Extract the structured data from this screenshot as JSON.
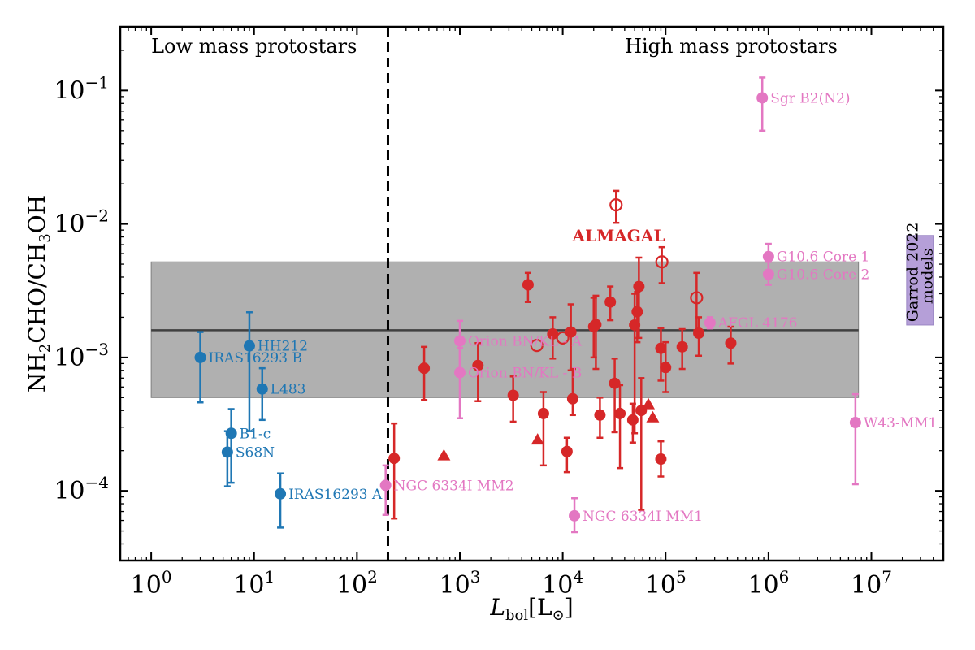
{
  "colors": {
    "low_mass": "#1f77b4",
    "almagal": "#d62728",
    "high_mass_lit": "#e377c2",
    "band": "#b0b0b0",
    "median_line": "#404040",
    "garrod": "#b59fd8"
  },
  "chart_data": {
    "type": "scatter",
    "xscale": "log",
    "yscale": "log",
    "xlim": [
      0.5,
      50000000
    ],
    "ylim": [
      3e-05,
      0.3
    ],
    "xlabel": "L_bol[L_⊙]",
    "ylabel": "NH2CHO/CH3OH",
    "x_ticks": [
      {
        "value": 1,
        "base": "10",
        "exp": "0"
      },
      {
        "value": 10,
        "base": "10",
        "exp": "1"
      },
      {
        "value": 100,
        "base": "10",
        "exp": "2"
      },
      {
        "value": 1000,
        "base": "10",
        "exp": "3"
      },
      {
        "value": 10000,
        "base": "10",
        "exp": "4"
      },
      {
        "value": 100000,
        "base": "10",
        "exp": "5"
      },
      {
        "value": 1000000,
        "base": "10",
        "exp": "6"
      },
      {
        "value": 10000000,
        "base": "10",
        "exp": "7"
      }
    ],
    "y_ticks": [
      {
        "value": 0.0001,
        "base": "10",
        "exp": "−4"
      },
      {
        "value": 0.001,
        "base": "10",
        "exp": "−3"
      },
      {
        "value": 0.01,
        "base": "10",
        "exp": "−2"
      },
      {
        "value": 0.1,
        "base": "10",
        "exp": "−1"
      }
    ],
    "region_divider_x": 200,
    "region_labels": {
      "low": "Low mass protostars",
      "high": "High mass protostars"
    },
    "band": {
      "x_range": [
        1,
        7500000
      ],
      "y_low": 0.0005,
      "y_high": 0.0052,
      "median": 0.0016
    },
    "almagal_label": "ALMAGAL",
    "garrod": {
      "x_range": [
        22000000,
        40000000
      ],
      "y_range": [
        0.00175,
        0.0082
      ],
      "label_line1": "Garrod 2022",
      "label_line2": "models"
    },
    "low_mass": [
      {
        "name": "IRAS16293 B",
        "x": 3,
        "y": 0.001,
        "ylo": 0.00046,
        "yhi": 0.00155
      },
      {
        "name": "HH212",
        "x": 9,
        "y": 0.00122,
        "ylo": 0.00028,
        "yhi": 0.00218
      },
      {
        "name": "L483",
        "x": 12,
        "y": 0.00058,
        "ylo": 0.00034,
        "yhi": 0.00083
      },
      {
        "name": "B1-c",
        "x": 6,
        "y": 0.00027,
        "ylo": 0.000115,
        "yhi": 0.00041
      },
      {
        "name": "S68N",
        "x": 5.5,
        "y": 0.000195,
        "ylo": 0.000108,
        "yhi": 0.00028
      },
      {
        "name": "IRAS16293 A",
        "x": 18,
        "y": 9.5e-05,
        "ylo": 5.3e-05,
        "yhi": 0.000135
      }
    ],
    "high_mass_lit": [
      {
        "name": "Sgr B2(N2)",
        "x": 870000,
        "y": 0.088,
        "ylo": 0.05,
        "yhi": 0.125
      },
      {
        "name": "G10.6 Core 1",
        "x": 1000000,
        "y": 0.0057,
        "ylo": 0.0045,
        "yhi": 0.0071
      },
      {
        "name": "G10.6 Core 2",
        "x": 1000000,
        "y": 0.0042,
        "ylo": 0.0035,
        "yhi": 0.0052
      },
      {
        "name": "AFGL 4176",
        "x": 270000,
        "y": 0.00182,
        "ylo": 0.00165,
        "yhi": 0.002
      },
      {
        "name": "Orion BN/KL - A",
        "x": 1000,
        "y": 0.00133,
        "ylo": 0.0008,
        "yhi": 0.00188
      },
      {
        "name": "Orion BN/KL - B",
        "x": 1000,
        "y": 0.00077,
        "ylo": 0.00035,
        "yhi": 0.00118
      },
      {
        "name": "W43-MM1",
        "x": 7000000,
        "y": 0.000325,
        "ylo": 0.000112,
        "yhi": 0.00053
      },
      {
        "name": "NGC 6334I MM2",
        "x": 190,
        "y": 0.00011,
        "ylo": 6.6e-05,
        "yhi": 0.000155
      },
      {
        "name": "NGC 6334I MM1",
        "x": 13000,
        "y": 6.5e-05,
        "ylo": 4.9e-05,
        "yhi": 8.8e-05
      }
    ],
    "almagal_filled": [
      {
        "x": 230,
        "y": 0.000175,
        "ylo": 6.2e-05,
        "yhi": 0.00032
      },
      {
        "x": 450,
        "y": 0.00083,
        "ylo": 0.00048,
        "yhi": 0.0012
      },
      {
        "x": 1500,
        "y": 0.00087,
        "ylo": 0.00047,
        "yhi": 0.00128
      },
      {
        "x": 3300,
        "y": 0.00052,
        "ylo": 0.00033,
        "yhi": 0.00072
      },
      {
        "x": 4600,
        "y": 0.0035,
        "ylo": 0.0026,
        "yhi": 0.0043
      },
      {
        "x": 6500,
        "y": 0.00038,
        "ylo": 0.000155,
        "yhi": 0.00055
      },
      {
        "x": 8000,
        "y": 0.0015,
        "ylo": 0.00098,
        "yhi": 0.002
      },
      {
        "x": 11000,
        "y": 0.000197,
        "ylo": 0.000138,
        "yhi": 0.00025
      },
      {
        "x": 12000,
        "y": 0.00155,
        "ylo": 0.0008,
        "yhi": 0.0025
      },
      {
        "x": 12500,
        "y": 0.00049,
        "ylo": 0.00037,
        "yhi": 0.00082
      },
      {
        "x": 20000,
        "y": 0.0017,
        "ylo": 0.001,
        "yhi": 0.0028
      },
      {
        "x": 21000,
        "y": 0.00176,
        "ylo": 0.00082,
        "yhi": 0.0029
      },
      {
        "x": 23000,
        "y": 0.00037,
        "ylo": 0.00025,
        "yhi": 0.0005
      },
      {
        "x": 29000,
        "y": 0.0026,
        "ylo": 0.0019,
        "yhi": 0.0034
      },
      {
        "x": 32000,
        "y": 0.00064,
        "ylo": 0.000275,
        "yhi": 0.00098
      },
      {
        "x": 36000,
        "y": 0.00038,
        "ylo": 0.000148,
        "yhi": 0.00062
      },
      {
        "x": 48000,
        "y": 0.00034,
        "ylo": 0.00023,
        "yhi": 0.00045
      },
      {
        "x": 50000,
        "y": 0.00175,
        "ylo": 0.00027,
        "yhi": 0.003
      },
      {
        "x": 53000,
        "y": 0.0022,
        "ylo": 0.0013,
        "yhi": 0.0031
      },
      {
        "x": 55000,
        "y": 0.0034,
        "ylo": 0.0014,
        "yhi": 0.0056
      },
      {
        "x": 58000,
        "y": 0.0004,
        "ylo": 7.2e-05,
        "yhi": 0.0007
      },
      {
        "x": 90000,
        "y": 0.00117,
        "ylo": 0.00067,
        "yhi": 0.00166
      },
      {
        "x": 90000,
        "y": 0.000173,
        "ylo": 0.000128,
        "yhi": 0.000235
      },
      {
        "x": 100000,
        "y": 0.00084,
        "ylo": 0.00055,
        "yhi": 0.0013
      },
      {
        "x": 145000,
        "y": 0.0012,
        "ylo": 0.00082,
        "yhi": 0.00163
      },
      {
        "x": 210000,
        "y": 0.00152,
        "ylo": 0.00103,
        "yhi": 0.002
      },
      {
        "x": 430000,
        "y": 0.00128,
        "ylo": 0.0009,
        "yhi": 0.0017
      }
    ],
    "almagal_open": [
      {
        "x": 5600,
        "y": 0.00123,
        "ylo": 0.00123,
        "yhi": 0.00123
      },
      {
        "x": 10000,
        "y": 0.0014,
        "ylo": 0.0014,
        "yhi": 0.0014
      },
      {
        "x": 33000,
        "y": 0.0139,
        "ylo": 0.0102,
        "yhi": 0.0177
      },
      {
        "x": 92000,
        "y": 0.0052,
        "ylo": 0.0036,
        "yhi": 0.0067
      },
      {
        "x": 200000,
        "y": 0.0028,
        "ylo": 0.0016,
        "yhi": 0.0043
      }
    ],
    "almagal_upper_limits": [
      {
        "x": 700,
        "y": 0.000184
      },
      {
        "x": 5700,
        "y": 0.000242
      },
      {
        "x": 68000,
        "y": 0.000445
      },
      {
        "x": 75000,
        "y": 0.000355
      }
    ]
  }
}
